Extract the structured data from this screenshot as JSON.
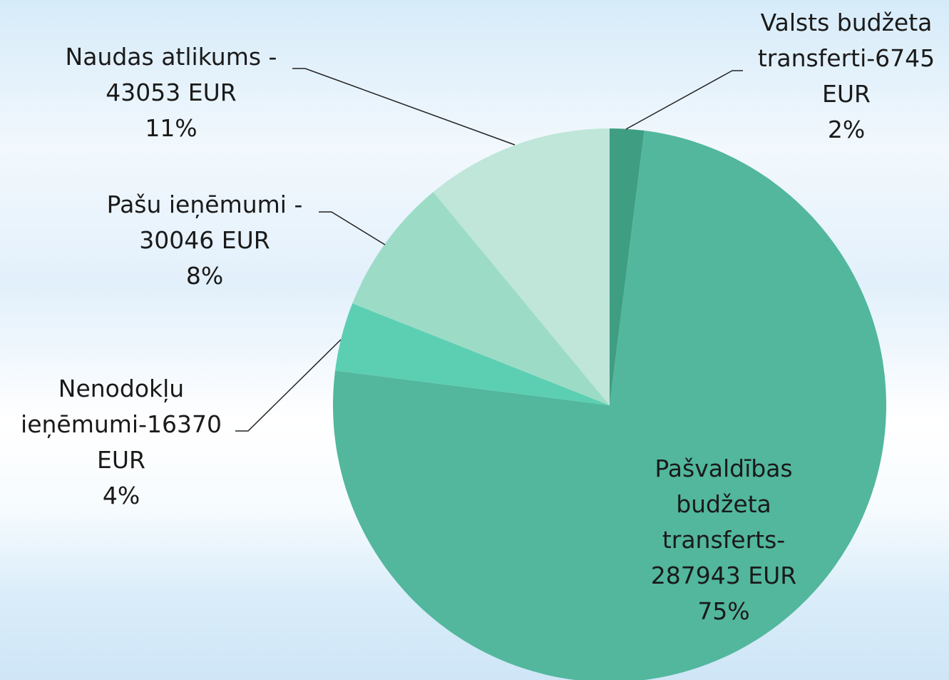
{
  "chart_data": {
    "type": "pie",
    "categories": [
      "Valsts budžeta\ntransferti-6745\nEUR",
      "Pašvaldības\nbudžeta\ntransferts-\n287943 EUR",
      "Nenodokļu\nieņēmumi-16370\nEUR",
      "Pašu ieņēmumi -\n30046 EUR",
      "Naudas atlikums -\n43053 EUR"
    ],
    "values": [
      2,
      75,
      4,
      8,
      11
    ],
    "value_labels": [
      "2%",
      "75%",
      "4%",
      "8%",
      "11%"
    ],
    "colors": [
      "#3f9e82",
      "#52b79d",
      "#5ccfb2",
      "#9cdcc7",
      "#bfe6d8"
    ]
  }
}
